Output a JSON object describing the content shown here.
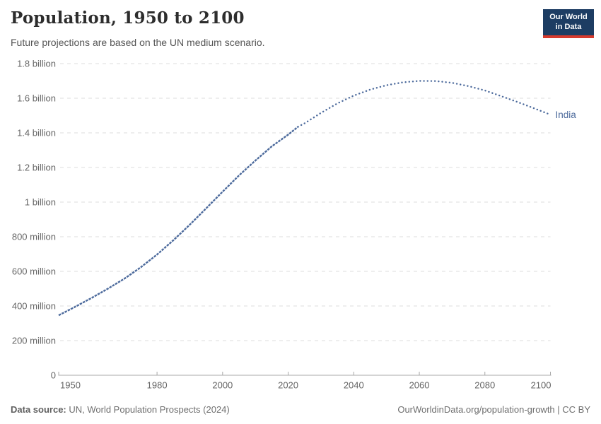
{
  "header": {
    "title": "Population, 1950 to 2100",
    "subtitle": "Future projections are based on the UN medium scenario.",
    "logo": {
      "line1": "Our World",
      "line2": "in Data",
      "bg_color": "#1d3d63",
      "stripe_color": "#d73a2d"
    }
  },
  "footer": {
    "source_label": "Data source:",
    "source_text": " UN, World Population Prospects (2024)",
    "credit": "OurWorldinData.org/population-growth | CC BY"
  },
  "chart_data": {
    "type": "line",
    "title": "Population, 1950 to 2100",
    "subtitle": "Future projections are based on the UN medium scenario.",
    "entity_label": "India",
    "line_color": "#4c6a9c",
    "grid": true,
    "gridline_color": "#dcdcdc",
    "axis_color": "#a8a8a8",
    "tick_label_color": "#666666",
    "xlim": [
      1950,
      2100
    ],
    "ylim_billions": [
      0,
      1.8
    ],
    "x_ticks": [
      1950,
      1980,
      2000,
      2020,
      2040,
      2060,
      2080,
      2100
    ],
    "y_ticks": [
      {
        "value_millions": 0,
        "label": "0"
      },
      {
        "value_millions": 200,
        "label": "200 million"
      },
      {
        "value_millions": 400,
        "label": "400 million"
      },
      {
        "value_millions": 600,
        "label": "600 million"
      },
      {
        "value_millions": 800,
        "label": "800 million"
      },
      {
        "value_millions": 1000,
        "label": "1 billion"
      },
      {
        "value_millions": 1200,
        "label": "1.2 billion"
      },
      {
        "value_millions": 1400,
        "label": "1.4 billion"
      },
      {
        "value_millions": 1600,
        "label": "1.6 billion"
      },
      {
        "value_millions": 1800,
        "label": "1.8 billion"
      }
    ],
    "projection_start_year": 2023,
    "historical_style": "solid",
    "projection_style": "dotted",
    "series": [
      {
        "name": "India",
        "x": [
          1950,
          1955,
          1960,
          1965,
          1970,
          1975,
          1980,
          1985,
          1990,
          1995,
          2000,
          2005,
          2010,
          2015,
          2020,
          2023,
          2025,
          2030,
          2035,
          2040,
          2045,
          2050,
          2055,
          2060,
          2065,
          2070,
          2075,
          2080,
          2085,
          2090,
          2095,
          2100
        ],
        "values_millions": [
          346,
          395,
          446,
          500,
          557,
          623,
          697,
          780,
          870,
          964,
          1060,
          1154,
          1240,
          1322,
          1390,
          1435,
          1455,
          1515,
          1570,
          1615,
          1650,
          1675,
          1692,
          1700,
          1699,
          1689,
          1670,
          1645,
          1612,
          1578,
          1542,
          1505
        ]
      }
    ]
  }
}
